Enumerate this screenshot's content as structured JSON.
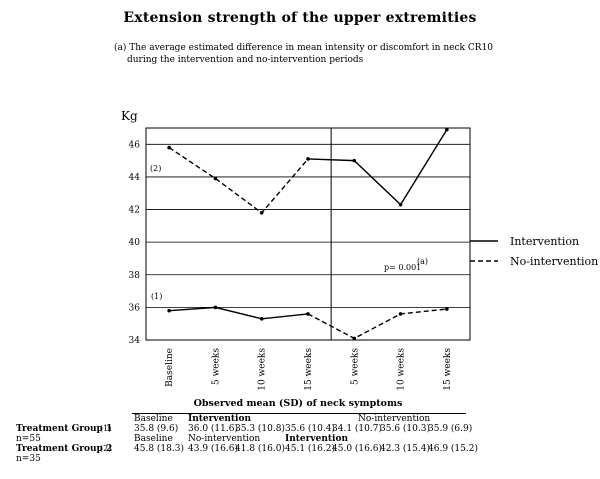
{
  "page": {
    "title": "Extension strength of the upper extremities",
    "subtitle_line1": "(a)  The  average estimated difference in mean intensity or discomfort in neck CR10",
    "subtitle_line2": "during the intervention and no-intervention periods"
  },
  "chart_data": {
    "type": "line",
    "title": "Extension strength of the upper extremities",
    "ylabel": "Kg",
    "xlabel": "Observed mean (SD) of neck symptoms",
    "ylim": [
      34,
      47
    ],
    "yticks": [
      34,
      36,
      38,
      40,
      42,
      44,
      46
    ],
    "categories": [
      "Baseline",
      "5 weeks",
      "10 weeks",
      "15 weeks",
      "5 weeks",
      "10 weeks",
      "15 weeks"
    ],
    "grid": "horizontal",
    "legend_placement": "right",
    "legend": [
      {
        "label": "Intervention",
        "style": "solid"
      },
      {
        "label": "No-intervention",
        "style": "dashed"
      }
    ],
    "series": [
      {
        "name": "(1)",
        "values": [
          35.8,
          36.0,
          35.3,
          35.6,
          34.1,
          35.6,
          35.9
        ],
        "segments": [
          {
            "from": 0,
            "to": 3,
            "style": "solid"
          },
          {
            "from": 3,
            "to": 6,
            "style": "dashed"
          }
        ]
      },
      {
        "name": "(2)",
        "values": [
          45.8,
          43.9,
          41.8,
          45.1,
          45.0,
          42.3,
          46.9
        ],
        "segments": [
          {
            "from": 0,
            "to": 3,
            "style": "dashed"
          },
          {
            "from": 3,
            "to": 6,
            "style": "solid"
          }
        ]
      }
    ],
    "annotation": {
      "text": "p= 0.001",
      "superscript": "(a)"
    },
    "divider_after_index": 3
  },
  "table": {
    "header": {
      "baseline": "Baseline",
      "intervention": "Intervention",
      "no_intervention": "No-intervention"
    },
    "group1": {
      "label": "Treatment Group 1",
      "num": "(1)",
      "n": "n=55",
      "values": [
        "35.8 (9.6)",
        "36.0 (11.6)",
        "35.3 (10.8)",
        "35.6 (10.4)",
        "34.1 (10.7)",
        "35.6 (10.3)",
        "35.9 (6.9)"
      ]
    },
    "mid_header": {
      "baseline": "Baseline",
      "no_intervention": "No-intervention",
      "intervention": "Intervention"
    },
    "group2": {
      "label": "Treatment Group 2",
      "num": "(2)",
      "n": "n=35",
      "values": [
        "45.8 (18.3)",
        "43.9 (16.6)",
        "41.8 (16.0)",
        "45.1 (16.2)",
        "45.0 (16.6)",
        "42.3 (15.4)",
        "46.9 (15.2)"
      ]
    }
  }
}
